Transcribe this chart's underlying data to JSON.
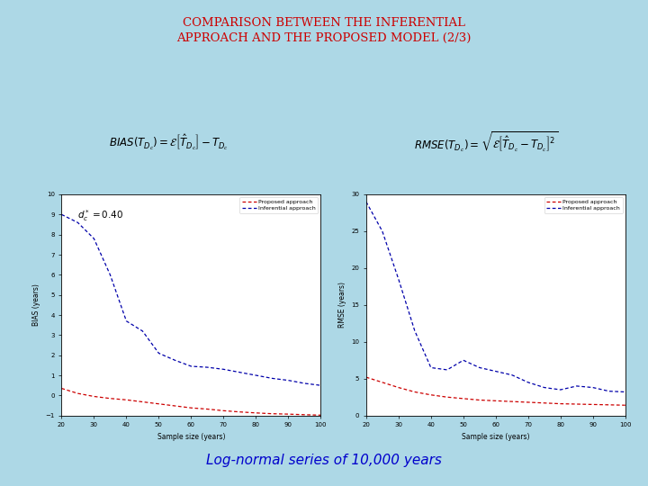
{
  "title_line1": "COMPARISON BETWEEN THE INFERENTIAL",
  "title_line2": "APPROACH AND THE PROPOSED MODEL (2/3)",
  "title_color": "#cc0000",
  "bg_color": "#add8e6",
  "formula_bg": "#ffffff",
  "subtitle": "Log-normal series of 10,000 years",
  "subtitle_color": "#0000cc",
  "plot_border_color": "#3355bb",
  "bias_ylabel": "BIAS (years)",
  "rmse_ylabel": "RMSE (years)",
  "xlabel": "Sample size (years)",
  "bias_ylim": [
    -1,
    10
  ],
  "bias_yticks": [
    -1,
    0,
    1,
    2,
    3,
    4,
    5,
    6,
    7,
    8,
    9,
    10
  ],
  "rmse_ylim": [
    0,
    30
  ],
  "rmse_yticks": [
    0,
    5,
    10,
    15,
    20,
    25,
    30
  ],
  "xlim": [
    20,
    100
  ],
  "xticks": [
    20,
    30,
    40,
    50,
    60,
    70,
    80,
    90,
    100
  ],
  "proposed_color": "#cc0000",
  "inferential_color": "#0000aa",
  "legend_proposed": "Proposed approach",
  "legend_inferential": "Inferential approach",
  "x_vals": [
    20,
    25,
    30,
    35,
    40,
    45,
    50,
    55,
    60,
    65,
    70,
    75,
    80,
    85,
    90,
    95,
    100
  ],
  "bias_proposed": [
    0.35,
    0.1,
    -0.05,
    -0.15,
    -0.22,
    -0.32,
    -0.42,
    -0.52,
    -0.62,
    -0.68,
    -0.76,
    -0.82,
    -0.87,
    -0.91,
    -0.93,
    -0.96,
    -0.98
  ],
  "bias_inferential": [
    9.0,
    8.6,
    7.8,
    6.0,
    3.7,
    3.2,
    2.1,
    1.75,
    1.45,
    1.4,
    1.3,
    1.15,
    1.0,
    0.85,
    0.75,
    0.6,
    0.5
  ],
  "rmse_proposed": [
    5.2,
    4.5,
    3.8,
    3.2,
    2.8,
    2.5,
    2.3,
    2.1,
    2.0,
    1.9,
    1.8,
    1.7,
    1.6,
    1.55,
    1.5,
    1.45,
    1.4
  ],
  "rmse_inferential": [
    29.0,
    25.0,
    18.5,
    11.5,
    6.5,
    6.2,
    7.5,
    6.5,
    6.0,
    5.5,
    4.5,
    3.8,
    3.5,
    4.0,
    3.8,
    3.3,
    3.2
  ]
}
